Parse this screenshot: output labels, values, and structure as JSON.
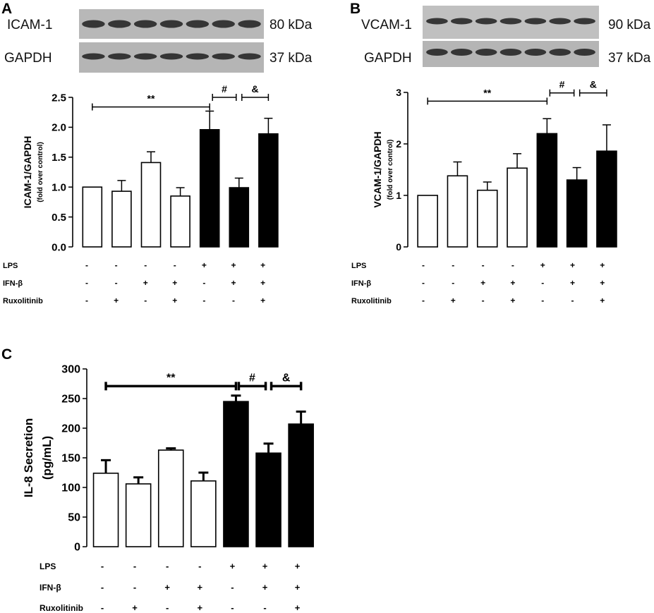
{
  "panels": {
    "A": {
      "letter": "A",
      "blot_labels": [
        "ICAM-1",
        "GAPDH"
      ],
      "blot_sizes": [
        "80 kDa",
        "37 kDa"
      ]
    },
    "B": {
      "letter": "B",
      "blot_labels": [
        "VCAM-1",
        "GAPDH"
      ],
      "blot_sizes": [
        "90 kDa",
        "37 kDa"
      ]
    },
    "C": {
      "letter": "C"
    }
  },
  "treatments": {
    "rows": [
      "LPS",
      "IFN-β",
      "Ruxolitinib"
    ],
    "signs": [
      [
        "-",
        "-",
        "-",
        "-",
        "+",
        "+",
        "+"
      ],
      [
        "-",
        "-",
        "+",
        "+",
        "-",
        "+",
        "+"
      ],
      [
        "-",
        "+",
        "-",
        "+",
        "-",
        "-",
        "+"
      ]
    ]
  },
  "colors": {
    "open_bar": "#ffffff",
    "filled_bar": "#000000",
    "blot_background": "#b5b5b5",
    "band": "#1e1e1e"
  },
  "chart_data": [
    {
      "id": "A",
      "type": "bar",
      "categories": [
        "1",
        "2",
        "3",
        "4",
        "5",
        "6",
        "7"
      ],
      "values": [
        1.0,
        0.93,
        1.41,
        0.85,
        1.96,
        0.99,
        1.89
      ],
      "errors": [
        0.0,
        0.18,
        0.18,
        0.14,
        0.31,
        0.16,
        0.26
      ],
      "filled": [
        false,
        false,
        false,
        false,
        true,
        true,
        true
      ],
      "ylabel": "ICAM-1/GAPDH",
      "ylabel_sub": "(fold over control)",
      "ylim": [
        0,
        2.5
      ],
      "yticks": [
        "0.0",
        "0.5",
        "1.0",
        "1.5",
        "2.0",
        "2.5"
      ],
      "brackets": [
        {
          "from": 1,
          "to": 5,
          "label": "**",
          "y": 2.34
        },
        {
          "from": 5,
          "to": 6,
          "label": "#",
          "y": 2.5
        },
        {
          "from": 6,
          "to": 7,
          "label": "&",
          "y": 2.5
        }
      ]
    },
    {
      "id": "B",
      "type": "bar",
      "categories": [
        "1",
        "2",
        "3",
        "4",
        "5",
        "6",
        "7"
      ],
      "values": [
        1.0,
        1.38,
        1.1,
        1.53,
        2.2,
        1.3,
        1.86
      ],
      "errors": [
        0.0,
        0.27,
        0.16,
        0.28,
        0.29,
        0.24,
        0.51
      ],
      "filled": [
        false,
        false,
        false,
        false,
        true,
        true,
        true
      ],
      "ylabel": "VCAM-1/GAPDH",
      "ylabel_sub": "(fold over control)",
      "ylim": [
        0,
        3
      ],
      "yticks": [
        "0",
        "1",
        "2",
        "3"
      ],
      "brackets": [
        {
          "from": 1,
          "to": 5,
          "label": "**",
          "y": 2.83
        },
        {
          "from": 5,
          "to": 6,
          "label": "#",
          "y": 2.99
        },
        {
          "from": 6,
          "to": 7,
          "label": "&",
          "y": 2.99
        }
      ]
    },
    {
      "id": "C",
      "type": "bar",
      "categories": [
        "1",
        "2",
        "3",
        "4",
        "5",
        "6",
        "7"
      ],
      "values": [
        124,
        106,
        163,
        111,
        245,
        158,
        207
      ],
      "errors": [
        22,
        11,
        3,
        14,
        10,
        16,
        21
      ],
      "filled": [
        false,
        false,
        false,
        false,
        true,
        true,
        true
      ],
      "ylabel": "IL-8 Secretion",
      "ylabel_sub": "(pg/mL)",
      "ylim": [
        0,
        300
      ],
      "yticks": [
        "0",
        "50",
        "100",
        "150",
        "200",
        "250",
        "300"
      ],
      "brackets": [
        {
          "from": 1,
          "to": 5,
          "label": "**",
          "y": 271
        },
        {
          "from": 5,
          "to": 6,
          "label": "#",
          "y": 271
        },
        {
          "from": 6,
          "to": 7,
          "label": "&",
          "y": 271
        }
      ]
    }
  ]
}
